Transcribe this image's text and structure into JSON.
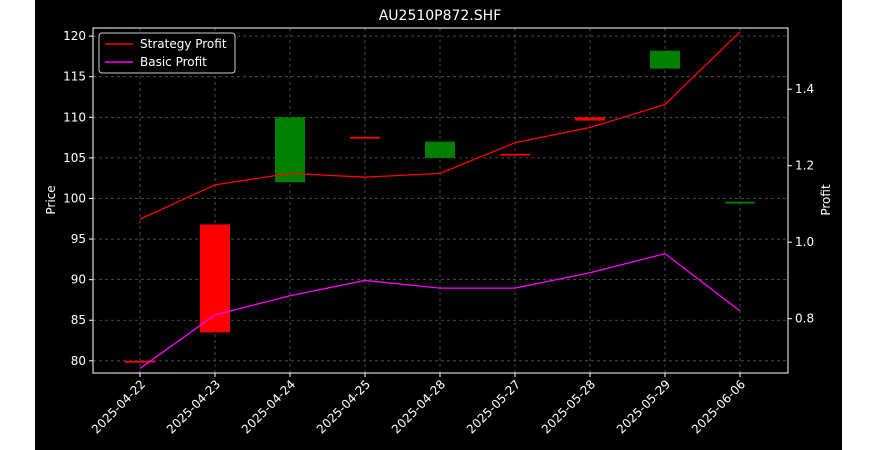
{
  "chart_data": {
    "type": "candlestick_with_lines",
    "title": "AU2510P872.SHF",
    "ylabel_left": "Price",
    "ylabel_right": "Profit",
    "categories": [
      "2025-04-22",
      "2025-04-23",
      "2025-04-24",
      "2025-04-25",
      "2025-04-28",
      "2025-05-27",
      "2025-05-28",
      "2025-05-29",
      "2025-06-06"
    ],
    "ylim_left": [
      78.5,
      121.0
    ],
    "ylim_right": [
      0.658,
      1.56
    ],
    "yticks_left": [
      80,
      85,
      90,
      95,
      100,
      105,
      110,
      115,
      120
    ],
    "yticks_right": [
      0.8,
      1.0,
      1.2,
      1.4
    ],
    "candles": [
      {
        "open": 80.0,
        "close": 80.0,
        "color": "#ff0000"
      },
      {
        "open": 96.8,
        "close": 83.5,
        "color": "#ff0000"
      },
      {
        "open": 102.0,
        "close": 110.0,
        "color": "#008000"
      },
      {
        "open": 107.6,
        "close": 107.6,
        "color": "#ff0000"
      },
      {
        "open": 105.0,
        "close": 107.0,
        "color": "#008000"
      },
      {
        "open": 105.5,
        "close": 105.5,
        "color": "#ff0000"
      },
      {
        "open": 110.0,
        "close": 109.6,
        "color": "#ff0000"
      },
      {
        "open": 116.0,
        "close": 118.2,
        "color": "#008000"
      },
      {
        "open": 99.5,
        "close": 99.6,
        "color": "#008000"
      }
    ],
    "series": [
      {
        "name": "Strategy Profit",
        "color": "#ff0000",
        "values": [
          1.06,
          1.15,
          1.18,
          1.17,
          1.18,
          1.26,
          1.3,
          1.36,
          1.55
        ]
      },
      {
        "name": "Basic Profit",
        "color": "#ff00ff",
        "values": [
          0.67,
          0.81,
          0.86,
          0.9,
          0.88,
          0.88,
          0.92,
          0.97,
          0.82
        ]
      }
    ],
    "legend": "top-left",
    "grid": true,
    "background": "#000000",
    "text_color": "#ffffff"
  }
}
